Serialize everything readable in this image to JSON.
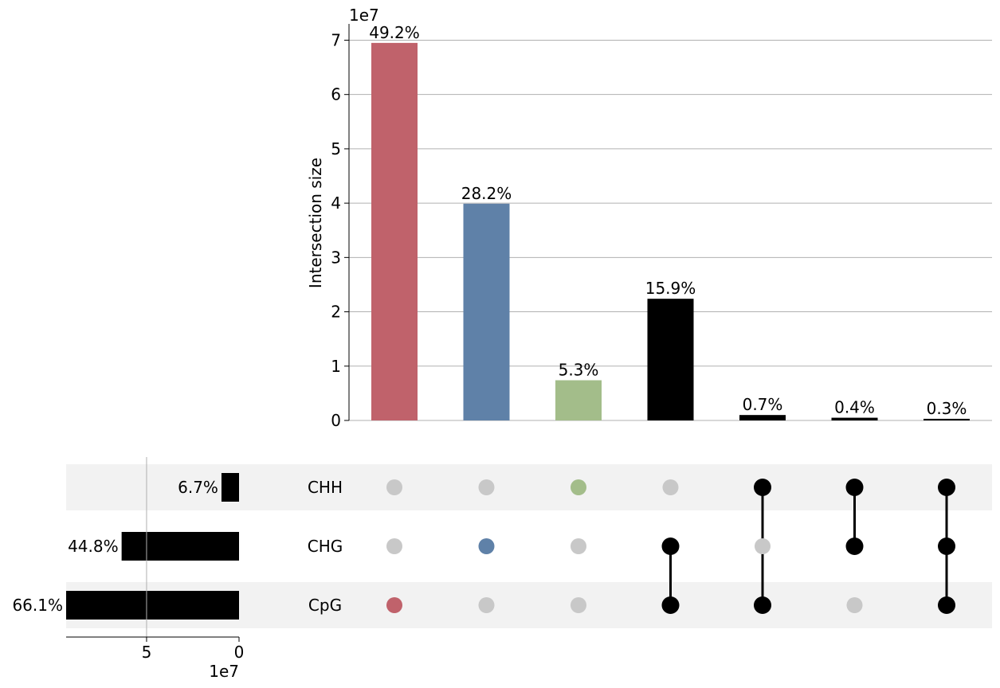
{
  "chart_data": {
    "type": "upset",
    "exponent_label": "1e7",
    "intersections": {
      "ylabel": "Intersection size",
      "ylim": [
        0,
        7.3
      ],
      "yticks": [
        "0",
        "1",
        "2",
        "3",
        "4",
        "5",
        "6",
        "7"
      ],
      "values": [
        6.95,
        3.99,
        0.74,
        2.24,
        0.1,
        0.05,
        0.03
      ],
      "labels": [
        "49.2%",
        "28.2%",
        "5.3%",
        "15.9%",
        "0.7%",
        "0.4%",
        "0.3%"
      ],
      "colors": [
        "#c0626b",
        "#5f81a8",
        "#a3bd8a",
        "#000000",
        "#000000",
        "#000000",
        "#000000"
      ],
      "memberships": [
        [
          "CpG"
        ],
        [
          "CHG"
        ],
        [
          "CHH"
        ],
        [
          "CHG",
          "CpG"
        ],
        [
          "CHH",
          "CpG"
        ],
        [
          "CHH",
          "CHG"
        ],
        [
          "CHH",
          "CHG",
          "CpG"
        ]
      ]
    },
    "sets": {
      "names": [
        "CHH",
        "CHG",
        "CpG"
      ],
      "values": [
        0.95,
        6.35,
        9.35
      ],
      "labels": [
        "6.7%",
        "44.8%",
        "66.1%"
      ],
      "xticks": [
        "5",
        "0"
      ],
      "xlim": [
        9.35,
        0
      ]
    },
    "grid": true
  },
  "colors": {
    "inactive_dot": "#c8c8c8",
    "shade": "#f2f2f2",
    "grid": "#b0b0b0"
  }
}
